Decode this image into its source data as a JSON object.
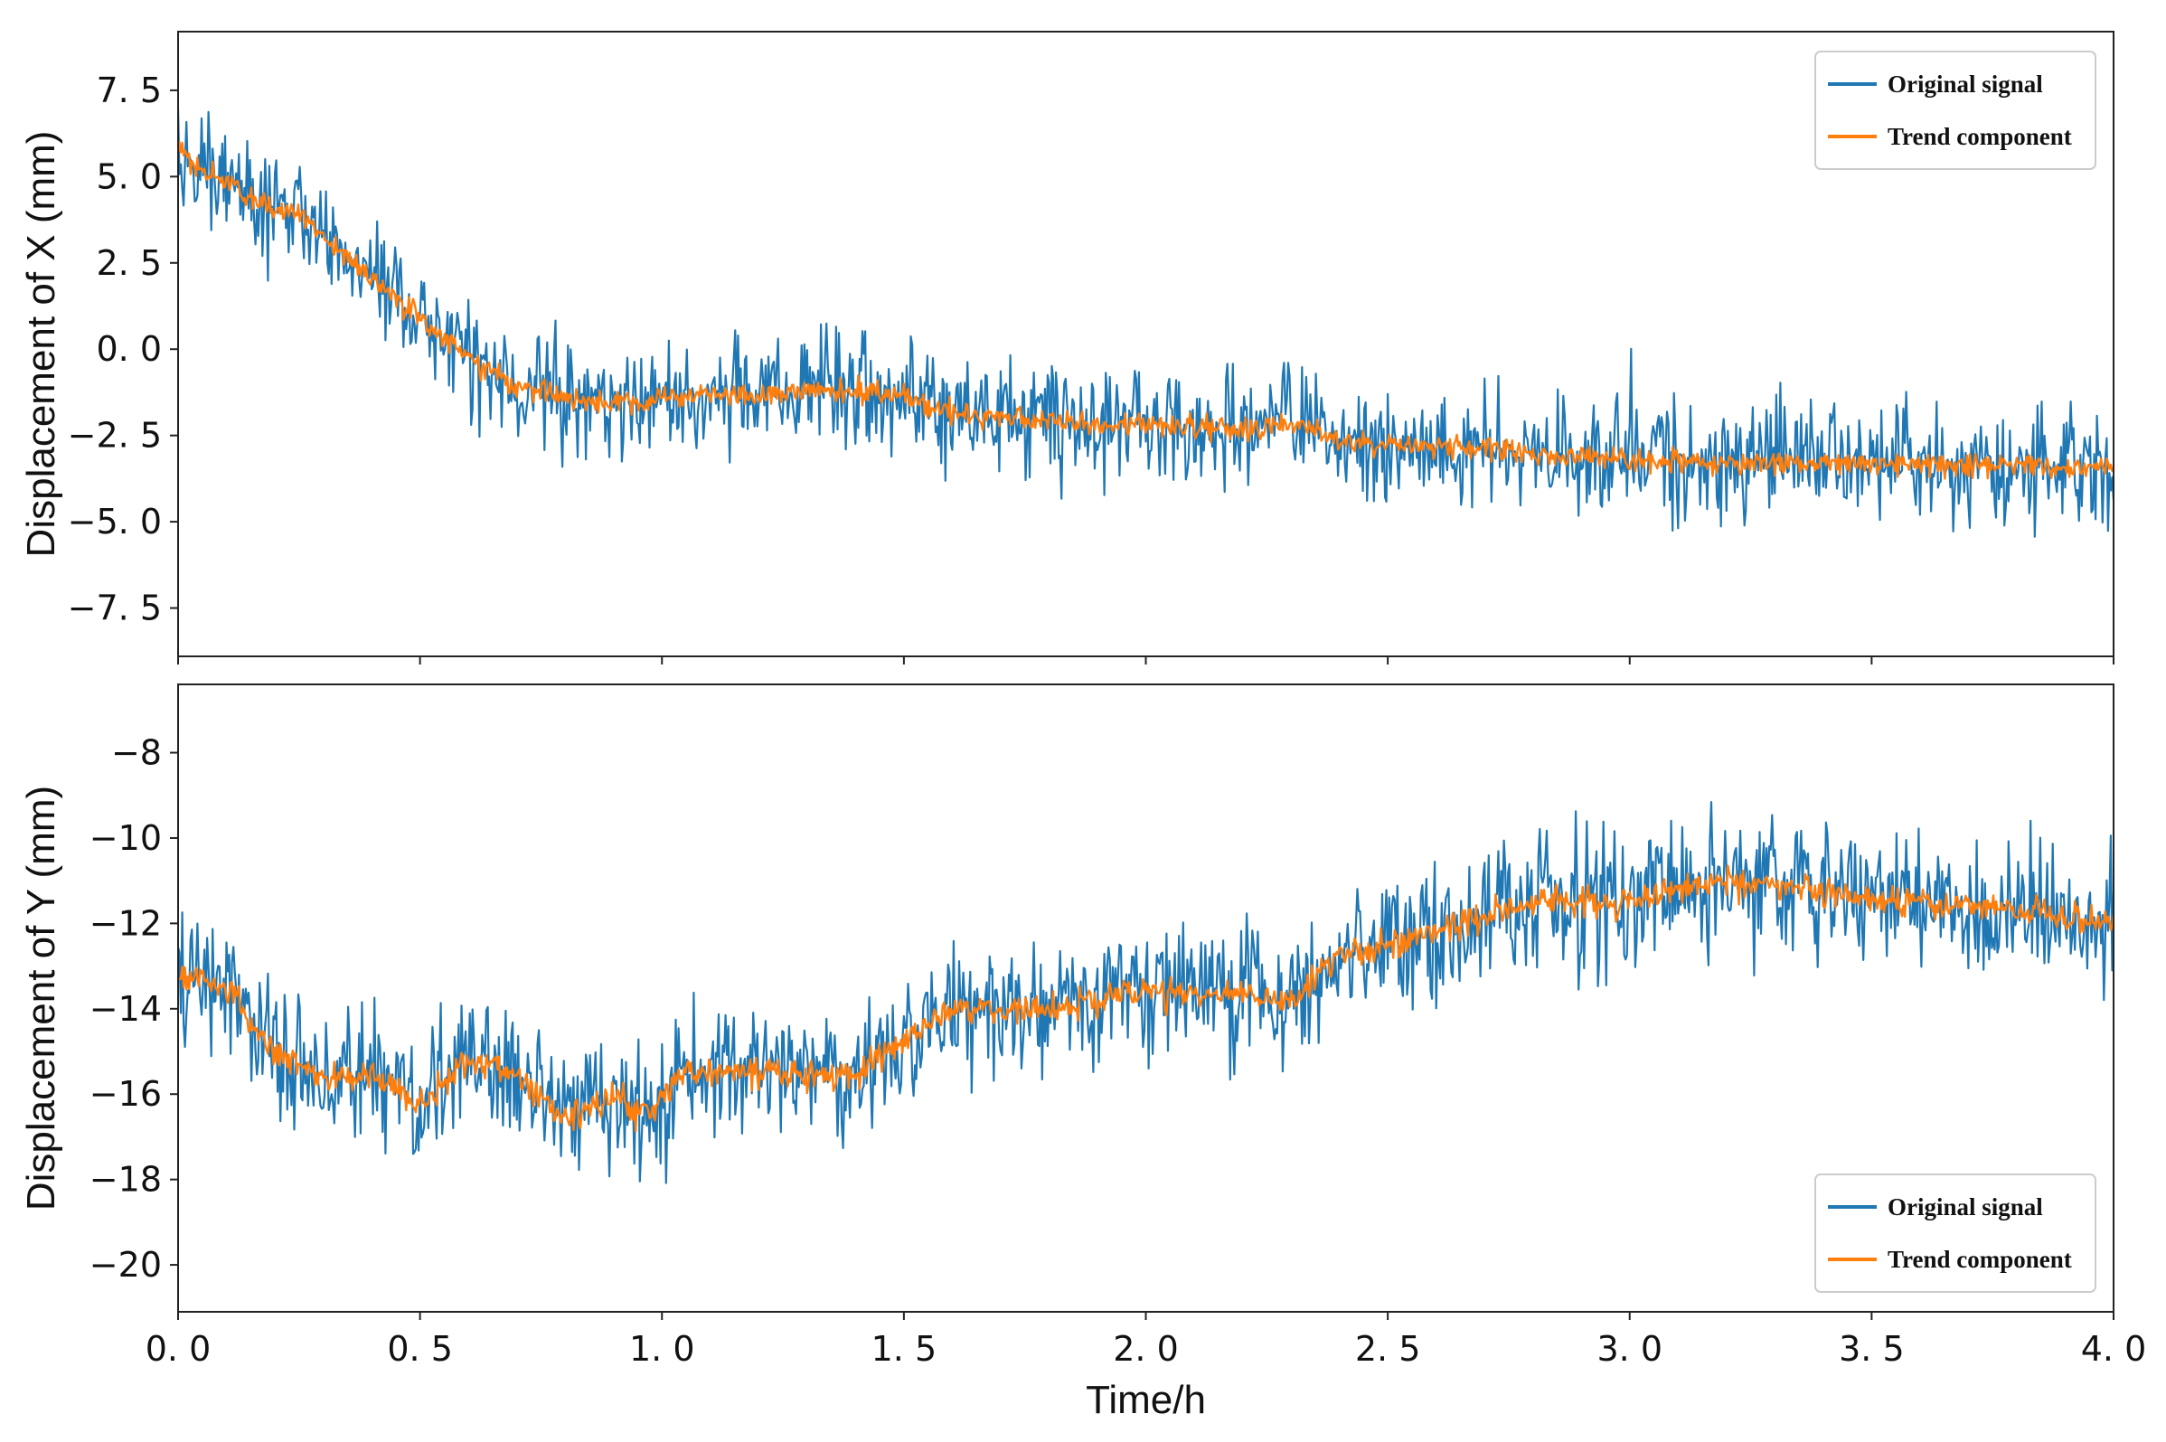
{
  "chart_data": [
    {
      "type": "line",
      "panel": "top",
      "ylabel": "Displacement of X (mm)",
      "xlabel": "",
      "xlim": [
        0.0,
        4.0
      ],
      "ylim": [
        -8.9,
        9.2
      ],
      "yticks": [
        7.5,
        5.0,
        2.5,
        0.0,
        -2.5,
        -5.0,
        -7.5
      ],
      "ytick_labels": [
        "7. 5",
        "5. 0",
        "2. 5",
        "0. 0",
        "−2. 5",
        "−5. 0",
        "−7. 5"
      ],
      "legend_position": "top-right",
      "series": [
        {
          "name": "Original signal",
          "color": "#1f77b4",
          "noise_amplitude": 2.4,
          "trend_points": [
            [
              0.0,
              5.7
            ],
            [
              0.1,
              4.8
            ],
            [
              0.2,
              4.0
            ],
            [
              0.25,
              4.0
            ],
            [
              0.3,
              3.3
            ],
            [
              0.4,
              2.0
            ],
            [
              0.5,
              0.9
            ],
            [
              0.6,
              -0.3
            ],
            [
              0.7,
              -1.1
            ],
            [
              0.8,
              -1.4
            ],
            [
              0.9,
              -1.6
            ],
            [
              1.0,
              -1.4
            ],
            [
              1.2,
              -1.3
            ],
            [
              1.4,
              -1.2
            ],
            [
              1.5,
              -1.3
            ],
            [
              1.6,
              -1.8
            ],
            [
              1.8,
              -2.1
            ],
            [
              2.0,
              -2.2
            ],
            [
              2.2,
              -2.3
            ],
            [
              2.3,
              -2.1
            ],
            [
              2.4,
              -2.7
            ],
            [
              2.6,
              -2.8
            ],
            [
              2.8,
              -3.0
            ],
            [
              3.0,
              -3.2
            ],
            [
              3.2,
              -3.3
            ],
            [
              3.5,
              -3.3
            ],
            [
              3.8,
              -3.4
            ],
            [
              4.0,
              -3.5
            ]
          ]
        },
        {
          "name": "Trend component",
          "color": "#ff7f0e",
          "noise_amplitude": 0.5,
          "trend_points": [
            [
              0.0,
              5.7
            ],
            [
              0.1,
              4.8
            ],
            [
              0.2,
              4.0
            ],
            [
              0.25,
              4.0
            ],
            [
              0.3,
              3.3
            ],
            [
              0.4,
              2.0
            ],
            [
              0.5,
              0.9
            ],
            [
              0.6,
              -0.3
            ],
            [
              0.7,
              -1.1
            ],
            [
              0.8,
              -1.4
            ],
            [
              0.9,
              -1.6
            ],
            [
              1.0,
              -1.4
            ],
            [
              1.2,
              -1.3
            ],
            [
              1.4,
              -1.2
            ],
            [
              1.5,
              -1.3
            ],
            [
              1.6,
              -1.8
            ],
            [
              1.8,
              -2.1
            ],
            [
              2.0,
              -2.2
            ],
            [
              2.2,
              -2.3
            ],
            [
              2.3,
              -2.1
            ],
            [
              2.4,
              -2.7
            ],
            [
              2.6,
              -2.8
            ],
            [
              2.8,
              -3.0
            ],
            [
              3.0,
              -3.2
            ],
            [
              3.2,
              -3.3
            ],
            [
              3.5,
              -3.3
            ],
            [
              3.8,
              -3.4
            ],
            [
              4.0,
              -3.5
            ]
          ]
        }
      ]
    },
    {
      "type": "line",
      "panel": "bottom",
      "ylabel": "Displacement of Y (mm)",
      "xlabel": "Time/h",
      "xlim": [
        0.0,
        4.0
      ],
      "ylim": [
        -21.1,
        -6.4
      ],
      "yticks": [
        -8,
        -10,
        -12,
        -14,
        -16,
        -18,
        -20
      ],
      "ytick_labels": [
        "−8",
        "−10",
        "−12",
        "−14",
        "−16",
        "−18",
        "−20"
      ],
      "xticks": [
        0.0,
        0.5,
        1.0,
        1.5,
        2.0,
        2.5,
        3.0,
        3.5,
        4.0
      ],
      "xtick_labels": [
        "0. 0",
        "0. 5",
        "1. 0",
        "1. 5",
        "2. 0",
        "2. 5",
        "3. 0",
        "3. 5",
        "4. 0"
      ],
      "legend_position": "bottom-right",
      "series": [
        {
          "name": "Original signal",
          "color": "#1f77b4",
          "noise_amplitude": 2.3,
          "trend_points": [
            [
              0.0,
              -13.2
            ],
            [
              0.1,
              -13.5
            ],
            [
              0.2,
              -15.0
            ],
            [
              0.3,
              -15.6
            ],
            [
              0.4,
              -15.5
            ],
            [
              0.5,
              -16.3
            ],
            [
              0.6,
              -15.2
            ],
            [
              0.7,
              -15.6
            ],
            [
              0.8,
              -16.6
            ],
            [
              0.9,
              -16.0
            ],
            [
              0.97,
              -16.5
            ],
            [
              1.05,
              -15.5
            ],
            [
              1.2,
              -15.5
            ],
            [
              1.4,
              -15.6
            ],
            [
              1.5,
              -14.8
            ],
            [
              1.6,
              -14.0
            ],
            [
              1.8,
              -14.0
            ],
            [
              2.0,
              -13.6
            ],
            [
              2.2,
              -13.6
            ],
            [
              2.3,
              -13.8
            ],
            [
              2.4,
              -12.8
            ],
            [
              2.6,
              -12.2
            ],
            [
              2.8,
              -11.5
            ],
            [
              3.0,
              -11.5
            ],
            [
              3.2,
              -11.0
            ],
            [
              3.4,
              -11.3
            ],
            [
              3.6,
              -11.5
            ],
            [
              3.8,
              -11.7
            ],
            [
              4.0,
              -12.0
            ]
          ]
        },
        {
          "name": "Trend component",
          "color": "#ff7f0e",
          "noise_amplitude": 0.5,
          "trend_points": [
            [
              0.0,
              -13.2
            ],
            [
              0.1,
              -13.5
            ],
            [
              0.2,
              -15.0
            ],
            [
              0.3,
              -15.6
            ],
            [
              0.4,
              -15.5
            ],
            [
              0.5,
              -16.3
            ],
            [
              0.6,
              -15.2
            ],
            [
              0.7,
              -15.6
            ],
            [
              0.8,
              -16.6
            ],
            [
              0.9,
              -16.0
            ],
            [
              0.97,
              -16.5
            ],
            [
              1.05,
              -15.5
            ],
            [
              1.2,
              -15.5
            ],
            [
              1.4,
              -15.6
            ],
            [
              1.5,
              -14.8
            ],
            [
              1.6,
              -14.0
            ],
            [
              1.8,
              -14.0
            ],
            [
              2.0,
              -13.6
            ],
            [
              2.2,
              -13.6
            ],
            [
              2.3,
              -13.8
            ],
            [
              2.4,
              -12.8
            ],
            [
              2.6,
              -12.2
            ],
            [
              2.8,
              -11.5
            ],
            [
              3.0,
              -11.5
            ],
            [
              3.2,
              -11.0
            ],
            [
              3.4,
              -11.3
            ],
            [
              3.6,
              -11.5
            ],
            [
              3.8,
              -11.7
            ],
            [
              4.0,
              -12.0
            ]
          ]
        }
      ]
    }
  ]
}
